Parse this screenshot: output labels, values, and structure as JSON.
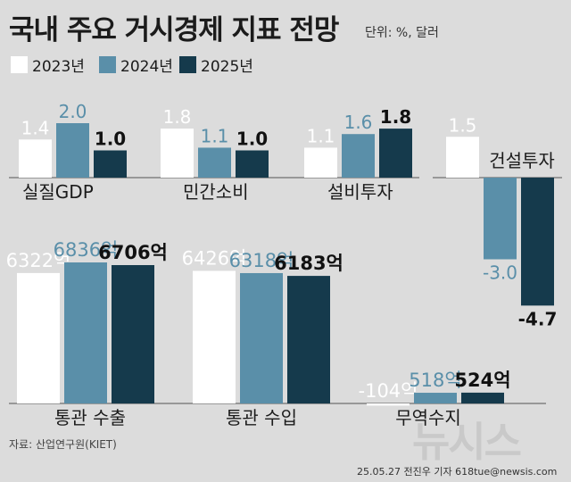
{
  "title": "국내 주요 거시경제 지표 전망",
  "unit_note": "단위: %, 달러",
  "source": "자료: 산업연구원(KIET)",
  "credit": "25.05.27 전진우 기자 618tue@newsis.com",
  "watermark": "뉴시스",
  "colors": {
    "2023년": "#ffffff",
    "2024년": "#5a8fa9",
    "2025년": "#153a4c",
    "background": "#dcdcdc",
    "axis": "#555555"
  },
  "chart_data": [
    {
      "type": "bar",
      "categories": [
        "실질GDP",
        "민간소비",
        "설비투자",
        "건설투자"
      ],
      "series": [
        {
          "name": "2023년",
          "values": [
            1.4,
            1.8,
            1.1,
            1.5
          ],
          "labels": [
            "1.4",
            "1.8",
            "1.1",
            "1.5"
          ]
        },
        {
          "name": "2024년",
          "values": [
            2.0,
            1.1,
            1.6,
            -3.0
          ],
          "labels": [
            "2.0",
            "1.1",
            "1.6",
            "-3.0"
          ]
        },
        {
          "name": "2025년",
          "values": [
            1.0,
            1.0,
            1.8,
            -4.7
          ],
          "labels": [
            "1.0",
            "1.0",
            "1.8",
            "-4.7"
          ]
        }
      ],
      "ylim": [
        -4.7,
        2.0
      ],
      "legend": "top-left"
    },
    {
      "type": "bar",
      "categories": [
        "통관 수출",
        "통관 수입",
        "무역수지"
      ],
      "series": [
        {
          "name": "2023년",
          "values": [
            6322,
            6426,
            -104
          ],
          "labels": [
            "6322억",
            "6426억",
            "-104억"
          ]
        },
        {
          "name": "2024년",
          "values": [
            6836,
            6318,
            518
          ],
          "labels": [
            "6836억",
            "6318억",
            "518억"
          ]
        },
        {
          "name": "2025년",
          "values": [
            6706,
            6183,
            524
          ],
          "labels": [
            "6706억",
            "6183억",
            "524억"
          ]
        }
      ],
      "ylim": [
        0,
        6836
      ]
    }
  ]
}
